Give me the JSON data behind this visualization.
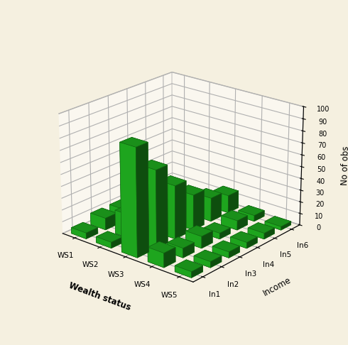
{
  "wealth_labels": [
    "WS1",
    "WS2",
    "WS3",
    "WS4",
    "WS5"
  ],
  "income_labels": [
    "In1",
    "In2",
    "In3",
    "In4",
    "In5",
    "In6"
  ],
  "data": [
    [
      5,
      10,
      10,
      8,
      5,
      3
    ],
    [
      5,
      20,
      25,
      15,
      10,
      5
    ],
    [
      90,
      65,
      45,
      30,
      20,
      15
    ],
    [
      12,
      8,
      10,
      5,
      8,
      5
    ],
    [
      5,
      5,
      5,
      5,
      5,
      3
    ]
  ],
  "bar_color": "#22bb22",
  "bar_edge_color": "#116611",
  "background_color": "#f5f0e0",
  "xlabel": "Income",
  "ylabel": "Wealth status",
  "zlabel": "No of obs",
  "zlim": [
    0,
    100
  ],
  "zticks": [
    0,
    10,
    20,
    30,
    40,
    50,
    60,
    70,
    80,
    90,
    100
  ],
  "elev": 22,
  "azim": -50
}
